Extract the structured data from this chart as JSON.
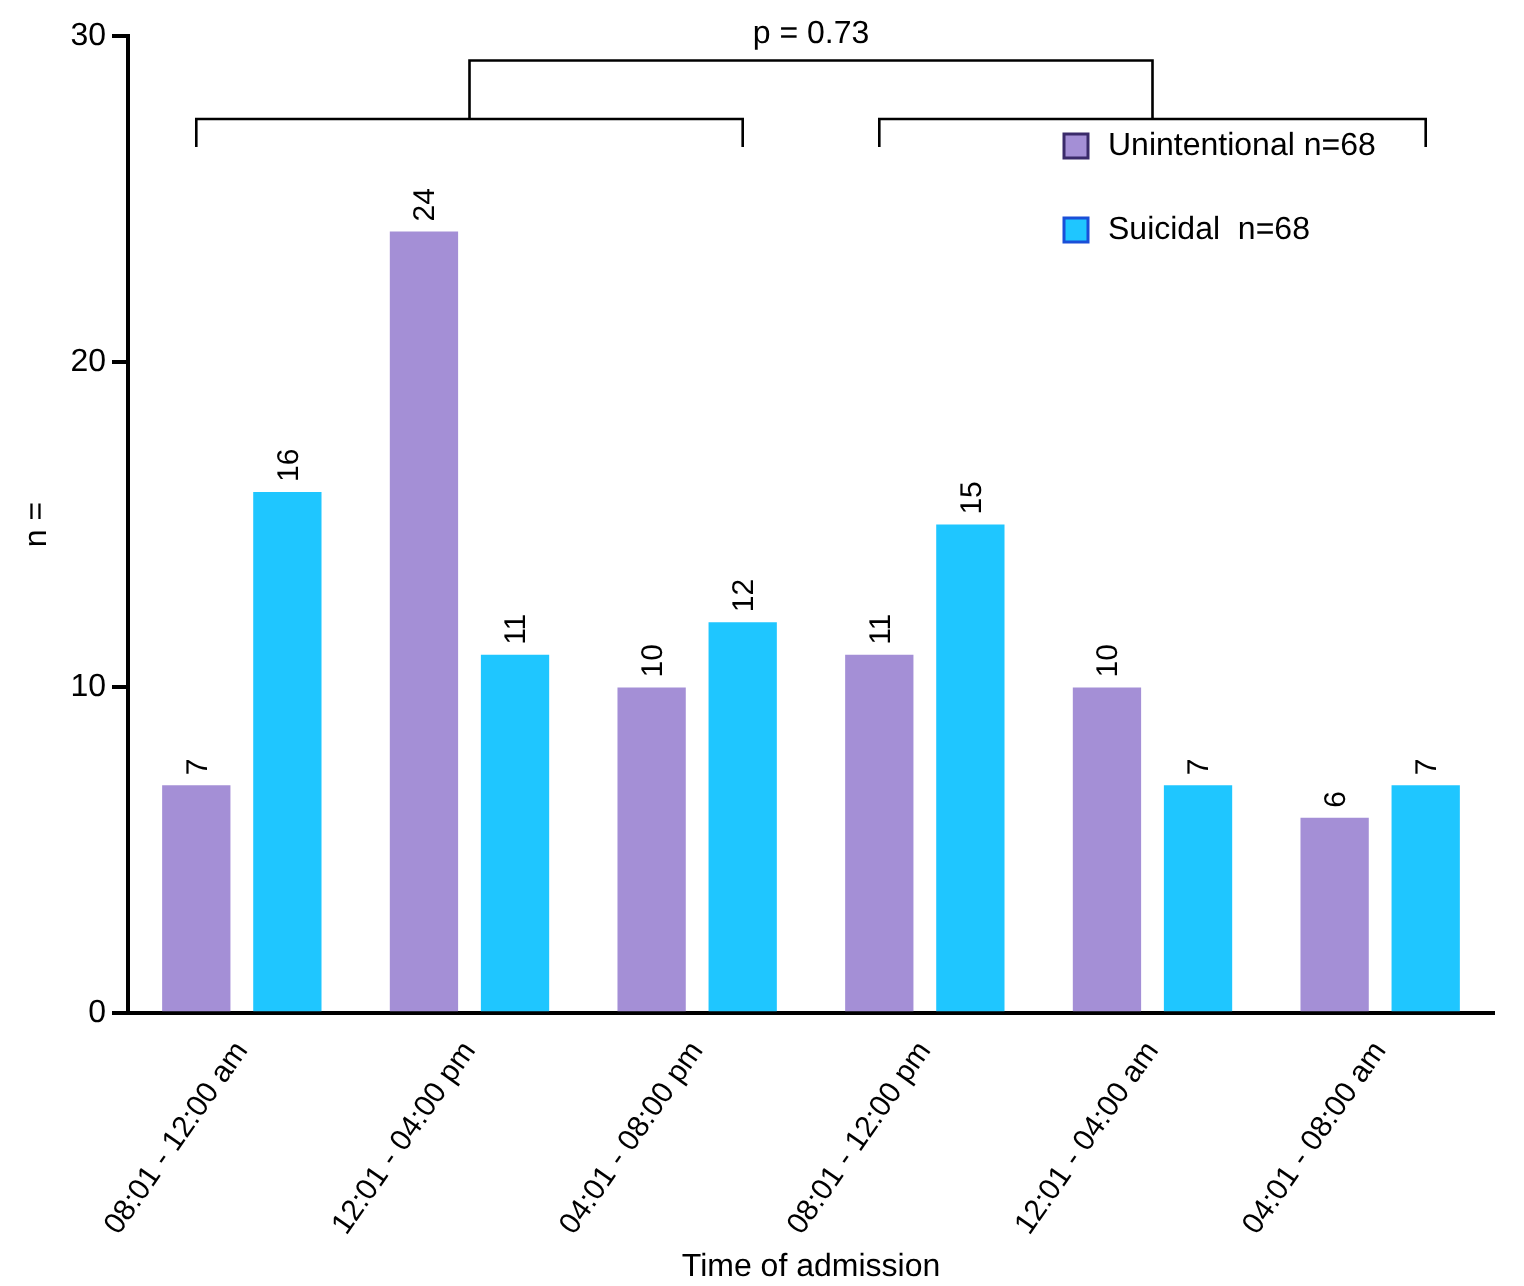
{
  "chart_data": {
    "type": "bar",
    "xlabel": "Time of admission",
    "ylabel": "n =",
    "categories": [
      "08:01 - 12:00 am",
      "12:01 - 04:00 pm",
      "04:01 - 08:00 pm",
      "08:01 - 12:00 pm",
      "12:01 - 04:00 am",
      "04:01 - 08:00 am"
    ],
    "series": [
      {
        "name": "Unintentional n=68",
        "color": "#a48fd6",
        "values": [
          7,
          24,
          10,
          11,
          10,
          6
        ]
      },
      {
        "name": "Suicidal  n=68",
        "color": "#1fc6ff",
        "values": [
          16,
          11,
          12,
          15,
          7,
          7
        ]
      }
    ],
    "ylim": [
      0,
      30
    ],
    "yticks": [
      0,
      10,
      20,
      30
    ],
    "grid": false,
    "legend": "top right",
    "data_labels": true,
    "annotations": [
      "p = 0.73"
    ]
  }
}
